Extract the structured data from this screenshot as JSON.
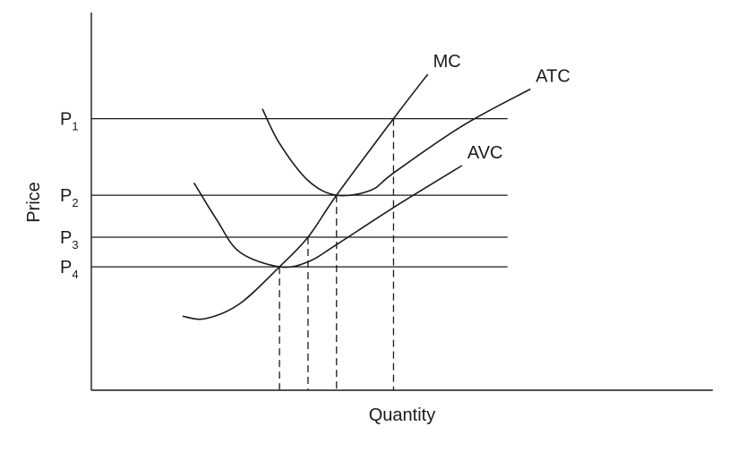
{
  "chart_data": {
    "type": "line",
    "title": "",
    "xlabel": "Quantity",
    "ylabel": "Price",
    "price_levels": [
      {
        "base": "P",
        "sub": "1",
        "value": 1.0
      },
      {
        "base": "P",
        "sub": "2",
        "value": 0.69
      },
      {
        "base": "P",
        "sub": "3",
        "value": 0.52
      },
      {
        "base": "P",
        "sub": "4",
        "value": 0.4
      }
    ],
    "series": [
      {
        "name": "MC",
        "points": [
          [
            0.16,
            0.2
          ],
          [
            0.2,
            0.19
          ],
          [
            0.26,
            0.25
          ],
          [
            0.33,
            0.4
          ],
          [
            0.38,
            0.52
          ],
          [
            0.43,
            0.69
          ],
          [
            0.53,
            1.0
          ],
          [
            0.59,
            1.18
          ]
        ]
      },
      {
        "name": "ATC",
        "points": [
          [
            0.3,
            1.04
          ],
          [
            0.33,
            0.9
          ],
          [
            0.38,
            0.75
          ],
          [
            0.43,
            0.69
          ],
          [
            0.49,
            0.71
          ],
          [
            0.53,
            0.78
          ],
          [
            0.65,
            0.97
          ],
          [
            0.77,
            1.12
          ]
        ]
      },
      {
        "name": "AVC",
        "points": [
          [
            0.18,
            0.74
          ],
          [
            0.22,
            0.59
          ],
          [
            0.26,
            0.46
          ],
          [
            0.33,
            0.4
          ],
          [
            0.38,
            0.42
          ],
          [
            0.43,
            0.49
          ],
          [
            0.53,
            0.64
          ],
          [
            0.65,
            0.81
          ]
        ]
      }
    ],
    "drop_lines": [
      {
        "x": 0.33,
        "y": 0.4
      },
      {
        "x": 0.38,
        "y": 0.52
      },
      {
        "x": 0.43,
        "y": 0.69
      },
      {
        "x": 0.53,
        "y": 1.0
      }
    ],
    "xlim": [
      0,
      1.09
    ],
    "ylim": [
      -0.1,
      1.43
    ],
    "grid": false,
    "legend": "none"
  }
}
